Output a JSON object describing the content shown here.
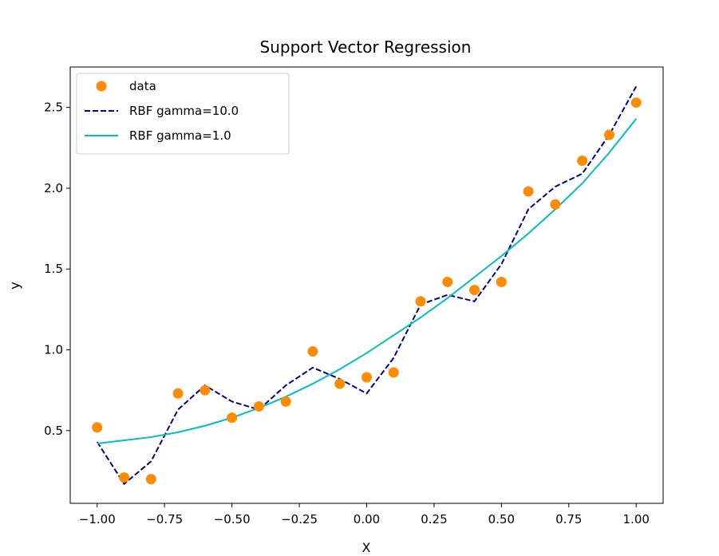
{
  "chart_data": {
    "type": "scatter",
    "title": "Support Vector Regression",
    "xlabel": "X",
    "ylabel": "y",
    "xlim": [
      -1.1,
      1.1
    ],
    "ylim": [
      0.05,
      2.75
    ],
    "x_ticks": [
      -1.0,
      -0.75,
      -0.5,
      -0.25,
      0.0,
      0.25,
      0.5,
      0.75,
      1.0
    ],
    "x_tick_labels": [
      "−1.00",
      "−0.75",
      "−0.50",
      "−0.25",
      "0.00",
      "0.25",
      "0.50",
      "0.75",
      "1.00"
    ],
    "y_ticks": [
      0.5,
      1.0,
      1.5,
      2.0,
      2.5
    ],
    "y_tick_labels": [
      "0.5",
      "1.0",
      "1.5",
      "2.0",
      "2.5"
    ],
    "grid": false,
    "legend_position": "top-left",
    "series": [
      {
        "name": "data",
        "kind": "scatter",
        "color": "#ff8c00",
        "x": [
          -1.0,
          -0.9,
          -0.8,
          -0.7,
          -0.6,
          -0.5,
          -0.4,
          -0.3,
          -0.2,
          -0.1,
          0.0,
          0.1,
          0.2,
          0.3,
          0.4,
          0.5,
          0.6,
          0.7,
          0.8,
          0.9,
          1.0
        ],
        "y": [
          0.52,
          0.21,
          0.2,
          0.73,
          0.75,
          0.58,
          0.65,
          0.68,
          0.99,
          0.79,
          0.83,
          0.86,
          1.3,
          1.42,
          1.37,
          1.42,
          1.98,
          1.9,
          2.17,
          2.33,
          2.53
        ]
      },
      {
        "name": "RBF gamma=10.0",
        "kind": "line",
        "style": "dashed",
        "color": "#00008b",
        "x": [
          -1.0,
          -0.9,
          -0.8,
          -0.7,
          -0.6,
          -0.5,
          -0.4,
          -0.3,
          -0.2,
          -0.1,
          0.0,
          0.1,
          0.2,
          0.3,
          0.4,
          0.5,
          0.6,
          0.7,
          0.8,
          0.9,
          1.0
        ],
        "y": [
          0.43,
          0.17,
          0.31,
          0.63,
          0.78,
          0.68,
          0.63,
          0.78,
          0.89,
          0.82,
          0.73,
          0.95,
          1.28,
          1.34,
          1.3,
          1.53,
          1.87,
          2.01,
          2.09,
          2.33,
          2.63
        ]
      },
      {
        "name": "RBF gamma=1.0",
        "kind": "line",
        "style": "solid",
        "color": "#00bfbf",
        "x": [
          -1.0,
          -0.9,
          -0.8,
          -0.7,
          -0.6,
          -0.5,
          -0.4,
          -0.3,
          -0.2,
          -0.1,
          0.0,
          0.1,
          0.2,
          0.3,
          0.4,
          0.5,
          0.6,
          0.7,
          0.8,
          0.9,
          1.0
        ],
        "y": [
          0.42,
          0.44,
          0.46,
          0.49,
          0.53,
          0.58,
          0.64,
          0.71,
          0.79,
          0.88,
          0.98,
          1.09,
          1.2,
          1.32,
          1.45,
          1.58,
          1.72,
          1.87,
          2.03,
          2.22,
          2.43
        ]
      }
    ]
  }
}
